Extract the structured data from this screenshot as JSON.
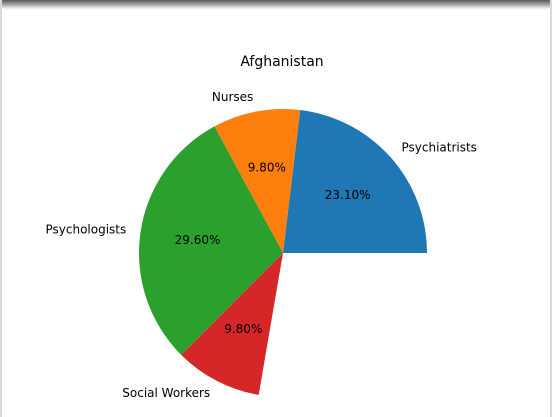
{
  "chart_data": {
    "type": "pie",
    "title": "Afghanistan",
    "slices": [
      {
        "label": "Psychiatrists",
        "value": 23.1,
        "pct_text": "23.10%",
        "color": "#1f77b4"
      },
      {
        "label": "Nurses",
        "value": 9.8,
        "pct_text": "9.80%",
        "color": "#ff7f0e"
      },
      {
        "label": "Psychologists",
        "value": 29.6,
        "pct_text": "29.60%",
        "color": "#2ca02c"
      },
      {
        "label": "Social Workers",
        "value": 9.8,
        "pct_text": "9.80%",
        "color": "#d62728"
      }
    ],
    "start_angle_deg": 0,
    "direction": "counterclockwise",
    "total_percent": 72.3
  }
}
